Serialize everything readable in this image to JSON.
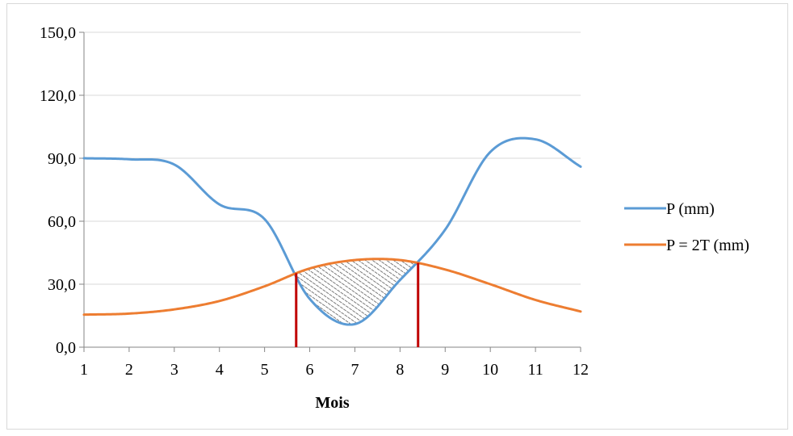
{
  "chart_data": {
    "type": "line",
    "title": "",
    "xlabel": "Mois",
    "ylabel": "",
    "xlim": [
      1,
      12
    ],
    "ylim": [
      0,
      150
    ],
    "x_ticks": [
      "1",
      "2",
      "3",
      "4",
      "5",
      "6",
      "7",
      "8",
      "9",
      "10",
      "11",
      "12"
    ],
    "y_ticks": [
      "0,0",
      "30,0",
      "60,0",
      "90,0",
      "120,0",
      "150,0"
    ],
    "grid": true,
    "legend_position": "right",
    "series": [
      {
        "name": "P (mm)",
        "color": "#5b9bd5",
        "x": [
          1,
          2,
          3,
          4,
          5,
          6,
          7,
          8,
          9,
          10,
          11,
          12
        ],
        "values": [
          90.0,
          89.5,
          87.0,
          68.0,
          61.0,
          23.0,
          11.0,
          32.0,
          56.0,
          93.0,
          99.0,
          86.0
        ]
      },
      {
        "name": "P = 2T (mm)",
        "color": "#ed7d31",
        "x": [
          1,
          2,
          3,
          4,
          5,
          6,
          7,
          8,
          9,
          10,
          11,
          12
        ],
        "values": [
          15.5,
          16.0,
          18.0,
          22.0,
          29.0,
          37.5,
          41.5,
          41.5,
          37.0,
          30.0,
          22.5,
          17.0
        ]
      }
    ],
    "annotations": {
      "dry_period_markers": {
        "x": [
          5.7,
          8.4
        ],
        "color": "#c00000"
      },
      "dry_period_fill": {
        "pattern": "hatched",
        "between": [
          "P = 2T (mm)",
          "P (mm)"
        ],
        "x_range": [
          5.7,
          8.4
        ]
      }
    }
  }
}
